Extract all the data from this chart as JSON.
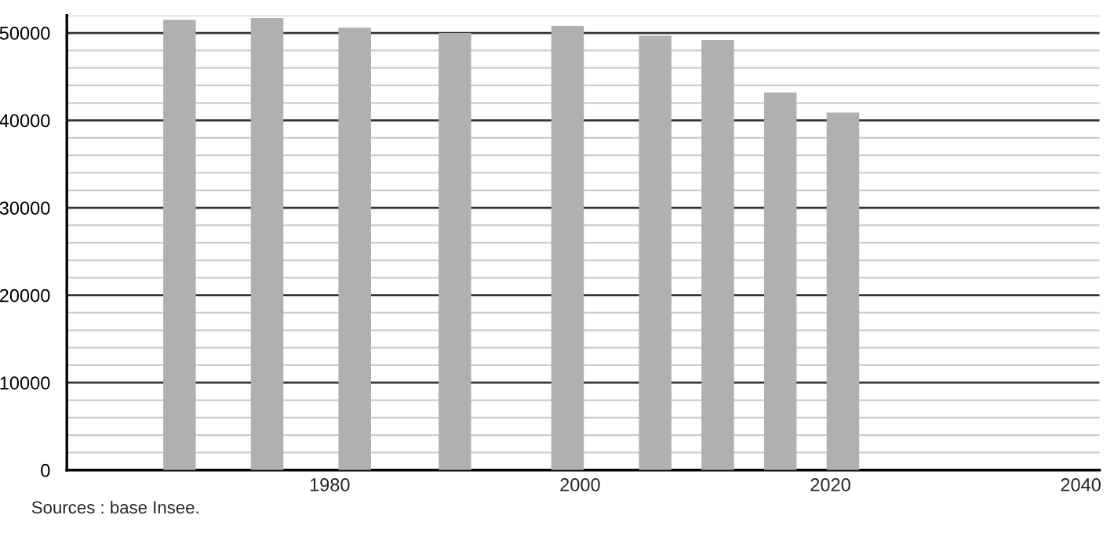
{
  "chart_data": {
    "type": "bar",
    "x": [
      1968,
      1975,
      1982,
      1990,
      1999,
      2006,
      2011,
      2016,
      2021
    ],
    "values": [
      51500,
      51700,
      50600,
      50000,
      50800,
      49700,
      49200,
      43200,
      40900
    ],
    "color": "#b0b0b0",
    "xlim": [
      1959,
      2041.5
    ],
    "xticks": [
      1980,
      2000,
      2020,
      2040
    ],
    "ylim": [
      0,
      52000
    ],
    "yticks": [
      0,
      {
        "value": 2000,
        "label": null
      },
      {
        "value": 4000,
        "label": null
      },
      {
        "value": 6000,
        "label": null
      },
      {
        "value": 8000,
        "label": null
      },
      10000,
      {
        "value": 12000,
        "label": null
      },
      {
        "value": 14000,
        "label": null
      },
      {
        "value": 16000,
        "label": null
      },
      {
        "value": 18000,
        "label": null
      },
      20000,
      {
        "value": 22000,
        "label": null
      },
      {
        "value": 24000,
        "label": null
      },
      {
        "value": 26000,
        "label": null
      },
      {
        "value": 28000,
        "label": null
      },
      30000,
      {
        "value": 32000,
        "label": null
      },
      {
        "value": 34000,
        "label": null
      },
      {
        "value": 36000,
        "label": null
      },
      {
        "value": 38000,
        "label": null
      },
      40000,
      {
        "value": 42000,
        "label": null
      },
      {
        "value": 44000,
        "label": null
      },
      {
        "value": 46000,
        "label": null
      },
      {
        "value": 48000,
        "label": null
      },
      50000,
      {
        "value": 52000,
        "label": null
      }
    ],
    "grid": "y",
    "annotations": [
      "Sources : base Insee."
    ]
  }
}
